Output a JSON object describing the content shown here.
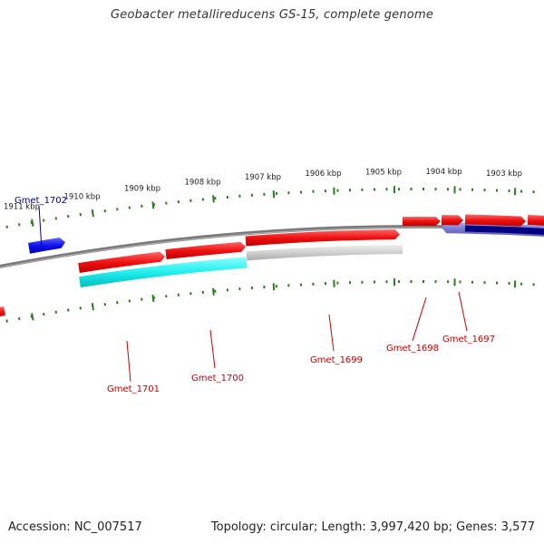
{
  "title": "Geobacter metallireducens GS-15, complete genome",
  "footer": {
    "accession": "Accession: NC_007517",
    "summary": "Topology: circular; Length: 3,997,420 bp; Genes: 3,577"
  },
  "colors": {
    "backbone": "#7a7a7a",
    "tick": "#2e7d22",
    "forward_gene": "#ee1111",
    "reverse_gene": "#d2d2d2",
    "selected_forward": "#1111ee",
    "selected_reverse": "#11eeee",
    "highlight_reverse": "#7777cc",
    "dark_blue": "#000080",
    "label_red": "#cc0000",
    "label_blue": "#000099"
  },
  "scale_labels": [
    "1911 kbp",
    "1910 kbp",
    "1909 kbp",
    "1908 kbp",
    "1907 kbp",
    "1906 kbp",
    "1905 kbp",
    "1904 kbp",
    "1903 kbp"
  ],
  "gene_labels": [
    {
      "name": "Gmet_1702",
      "color": "blue"
    },
    {
      "name": "Gmet_1701",
      "color": "red"
    },
    {
      "name": "Gmet_1700",
      "color": "red"
    },
    {
      "name": "Gmet_1699",
      "color": "red"
    },
    {
      "name": "Gmet_1698",
      "color": "red"
    },
    {
      "name": "Gmet_1697",
      "color": "red"
    }
  ]
}
